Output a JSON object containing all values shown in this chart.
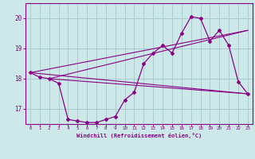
{
  "xlabel": "Windchill (Refroidissement éolien,°C)",
  "bg_color": "#cce8e8",
  "line_color": "#880088",
  "grid_color": "#aacccc",
  "xlim": [
    -0.5,
    23.5
  ],
  "ylim": [
    16.5,
    20.5
  ],
  "yticks": [
    17,
    18,
    19,
    20
  ],
  "xticks": [
    0,
    1,
    2,
    3,
    4,
    5,
    6,
    7,
    8,
    9,
    10,
    11,
    12,
    13,
    14,
    15,
    16,
    17,
    18,
    19,
    20,
    21,
    22,
    23
  ],
  "main_x": [
    0,
    1,
    2,
    3,
    4,
    5,
    6,
    7,
    8,
    9,
    10,
    11,
    12,
    13,
    14,
    15,
    16,
    17,
    18,
    19,
    20,
    21,
    22,
    23
  ],
  "main_y": [
    18.2,
    18.05,
    18.0,
    17.85,
    16.65,
    16.6,
    16.55,
    16.55,
    16.65,
    16.75,
    17.3,
    17.55,
    18.5,
    18.85,
    19.1,
    18.85,
    19.5,
    20.05,
    20.0,
    19.25,
    19.6,
    19.1,
    17.9,
    17.5
  ],
  "line1": {
    "x": [
      0,
      23
    ],
    "y": [
      18.2,
      17.5
    ]
  },
  "line2": {
    "x": [
      2,
      23
    ],
    "y": [
      18.0,
      19.6
    ]
  },
  "line3": {
    "x": [
      2,
      23
    ],
    "y": [
      18.0,
      17.5
    ]
  },
  "line4": {
    "x": [
      0,
      23
    ],
    "y": [
      18.2,
      19.6
    ]
  }
}
